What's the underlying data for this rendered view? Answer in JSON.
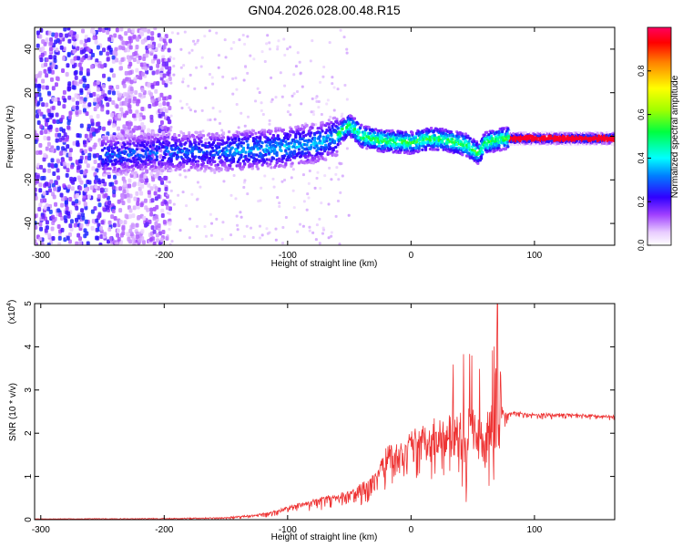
{
  "title": "GN04.2026.028.00.48.R15",
  "chart_data": [
    {
      "type": "heatmap",
      "name": "spectrogram",
      "xlabel": "Height of straight line (km)",
      "ylabel": "Frequency (Hz)",
      "xlim": [
        -305,
        165
      ],
      "ylim": [
        -50,
        50
      ],
      "xticks": [
        "-300",
        "-200",
        "-100",
        "0",
        "100"
      ],
      "yticks": [
        "-40",
        "-20",
        "0",
        "20",
        "40"
      ],
      "colorbar": {
        "label": "Normalized spectral amplitude",
        "range": [
          0,
          1
        ],
        "ticks": [
          "0.0",
          "0.2",
          "0.4",
          "0.6",
          "0.8"
        ]
      },
      "ridge": {
        "x": [
          -250,
          -200,
          -150,
          -100,
          -75,
          -60,
          -55,
          -50,
          -45,
          -40,
          -25,
          0,
          15,
          30,
          45,
          55,
          60,
          75,
          100,
          130,
          165
        ],
        "y": [
          -9,
          -7,
          -7,
          -5,
          -3,
          0,
          3,
          5,
          3,
          0,
          -2,
          -3,
          -1,
          -2,
          -4,
          -8,
          -3,
          -1,
          -1,
          -1,
          -1
        ]
      }
    },
    {
      "type": "line",
      "name": "snr",
      "xlabel": "Height of straight line (km)",
      "ylabel": "SNR (10 * v/v)",
      "yexponent": "(x10",
      "yexponent_power": "4",
      "yexponent_close": ")",
      "xlim": [
        -305,
        165
      ],
      "ylim": [
        0,
        5
      ],
      "xticks": [
        "-300",
        "-200",
        "-100",
        "0",
        "100"
      ],
      "yticks": [
        "0",
        "1",
        "2",
        "3",
        "4",
        "5"
      ],
      "color": "#ee3333",
      "envelope": {
        "x": [
          -305,
          -200,
          -150,
          -125,
          -110,
          -100,
          -80,
          -50,
          -30,
          -20,
          0,
          20,
          40,
          55,
          65,
          70,
          75,
          80,
          100,
          130,
          165
        ],
        "y": [
          0.02,
          0.03,
          0.05,
          0.12,
          0.2,
          0.3,
          0.45,
          0.65,
          1.0,
          1.6,
          1.9,
          2.2,
          2.4,
          2.5,
          2.6,
          2.55,
          2.5,
          2.5,
          2.45,
          2.45,
          2.4
        ]
      },
      "spread": {
        "x": [
          -305,
          -150,
          -100,
          -50,
          -30,
          0,
          20,
          40,
          60,
          70,
          75,
          80,
          165
        ],
        "y": [
          0.01,
          0.04,
          0.12,
          0.25,
          0.6,
          0.9,
          1.2,
          1.5,
          1.7,
          1.8,
          0.3,
          0.12,
          0.08
        ]
      },
      "peak": {
        "x": 70,
        "y": 5.0
      }
    }
  ]
}
